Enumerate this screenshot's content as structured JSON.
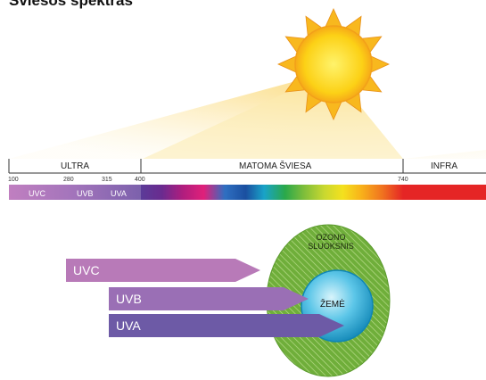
{
  "title": "Šviesos spektras",
  "spectrum": {
    "sections": {
      "ultra": "ULTRA",
      "visible": "MATOMA ŠVIESA",
      "infra": "INFRA"
    },
    "ticks": [
      "100",
      "280",
      "315",
      "400",
      "740"
    ],
    "bands": [
      "UVC",
      "UVB",
      "UVA"
    ]
  },
  "radiation": {
    "uvc": "UVC",
    "uvb": "UVB",
    "uva": "UVA"
  },
  "globe": {
    "ozone_line1": "OZONO",
    "ozone_line2": "SLUOKSNIS",
    "earth": "ŽEMĖ"
  },
  "colors": {
    "sun": "#fcd116",
    "ray": "#fbd978",
    "uvc": "#b87ab8",
    "uvb": "#9a6fb5",
    "uva": "#6d5aa6",
    "ozone": "#6fae3a",
    "earth": "#2aa8d8",
    "infra": "#e52525"
  }
}
